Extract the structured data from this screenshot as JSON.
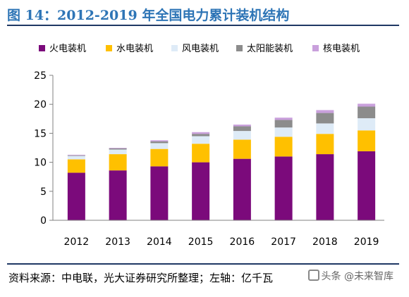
{
  "header": {
    "title": "图 14：2012-2019 年全国电力累计装机结构"
  },
  "footer": {
    "source": "资料来源：中电联，光大证券研究所整理；左轴：亿千瓦",
    "watermark": "头条 @未来智库"
  },
  "chart_data": {
    "type": "bar",
    "stacked": true,
    "categories": [
      "2012",
      "2013",
      "2014",
      "2015",
      "2016",
      "2017",
      "2018",
      "2019"
    ],
    "series": [
      {
        "name": "火电装机",
        "color": "#7b0a7b",
        "values": [
          8.2,
          8.6,
          9.3,
          10.0,
          10.6,
          11.0,
          11.4,
          11.9
        ]
      },
      {
        "name": "水电装机",
        "color": "#ffc000",
        "values": [
          2.3,
          2.8,
          3.0,
          3.2,
          3.3,
          3.4,
          3.5,
          3.6
        ]
      },
      {
        "name": "风电装机",
        "color": "#deebf7",
        "values": [
          0.6,
          0.8,
          1.0,
          1.3,
          1.5,
          1.6,
          1.8,
          2.1
        ]
      },
      {
        "name": "太阳能装机",
        "color": "#8c8c8c",
        "values": [
          0.1,
          0.2,
          0.3,
          0.4,
          0.8,
          1.3,
          1.8,
          2.0
        ]
      },
      {
        "name": "核电装机",
        "color": "#c9a0dc",
        "values": [
          0.1,
          0.1,
          0.2,
          0.3,
          0.3,
          0.4,
          0.5,
          0.5
        ]
      }
    ],
    "ylim": [
      0,
      25
    ],
    "yticks": [
      0,
      5,
      10,
      15,
      20,
      25
    ],
    "legend_position": "top",
    "grid": false
  }
}
